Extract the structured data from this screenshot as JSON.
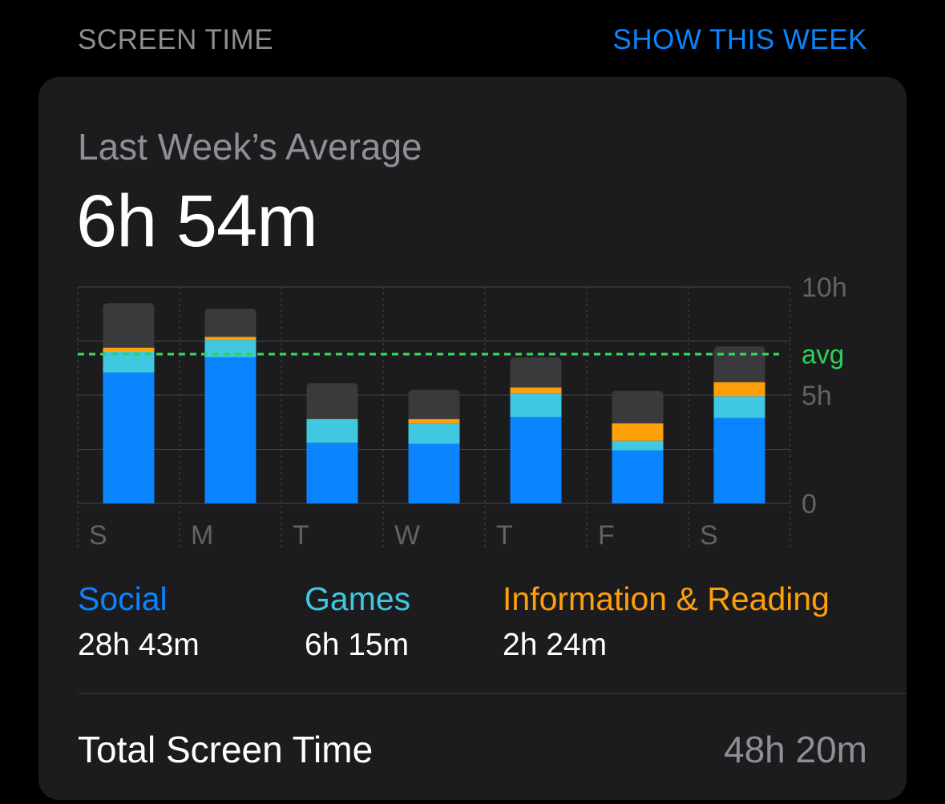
{
  "header": {
    "section_title": "SCREEN TIME",
    "toggle_label": "SHOW THIS WEEK"
  },
  "summary": {
    "label": "Last Week’s Average",
    "value": "6h 54m"
  },
  "colors": {
    "social": "#0a84ff",
    "games": "#40c8e0",
    "info": "#ff9f0a",
    "other": "#3a3a3c",
    "avg": "#30d158",
    "grid": "#48484a",
    "axis_text": "#636366"
  },
  "chart_data": {
    "type": "bar",
    "stacked": true,
    "categories": [
      "S",
      "M",
      "T",
      "W",
      "T",
      "F",
      "S"
    ],
    "y_tick_labels": [
      "10h",
      "5h",
      "0"
    ],
    "y_ticks": [
      10,
      5,
      0
    ],
    "ylim": [
      0,
      10
    ],
    "avg_label": "avg",
    "avg_value": 6.9,
    "series": [
      {
        "name": "Social",
        "color": "#0a84ff",
        "values": [
          6.05,
          6.75,
          2.8,
          2.75,
          4.0,
          2.45,
          3.95
        ]
      },
      {
        "name": "Games",
        "color": "#40c8e0",
        "values": [
          0.95,
          0.8,
          1.05,
          0.95,
          1.1,
          0.45,
          1.0
        ]
      },
      {
        "name": "Information & Reading",
        "color": "#ff9f0a",
        "values": [
          0.2,
          0.15,
          0.05,
          0.2,
          0.25,
          0.8,
          0.65
        ]
      },
      {
        "color": "#3a3a3c",
        "values": [
          2.05,
          1.3,
          1.65,
          1.35,
          1.4,
          1.5,
          1.65
        ]
      }
    ]
  },
  "legend": [
    {
      "name": "Social",
      "value": "28h 43m",
      "color": "#0a84ff"
    },
    {
      "name": "Games",
      "value": "6h 15m",
      "color": "#40c8e0"
    },
    {
      "name": "Information & Reading",
      "value": "2h 24m",
      "color": "#ff9f0a"
    }
  ],
  "total": {
    "label": "Total Screen Time",
    "value": "48h 20m"
  }
}
